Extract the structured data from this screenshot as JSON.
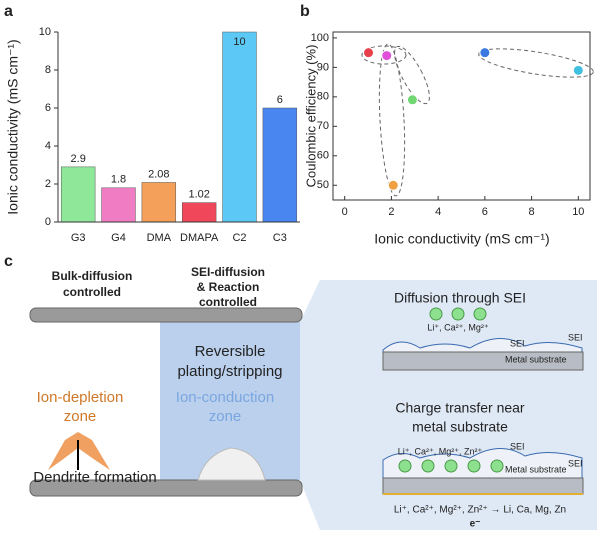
{
  "chart_data": [
    {
      "type": "bar",
      "panel": "a",
      "ylabel": "Ionic conductivity (mS cm⁻¹)",
      "categories": [
        "G3",
        "G4",
        "DMA",
        "DMAPA",
        "C2",
        "C3"
      ],
      "values": [
        2.9,
        1.8,
        2.08,
        1.02,
        10,
        6
      ],
      "colors": [
        "#8fe89a",
        "#f07cc4",
        "#f5a05a",
        "#f0485a",
        "#5cc8f5",
        "#4a86f0"
      ],
      "ylim": [
        0,
        10
      ],
      "yticks": [
        0,
        2,
        4,
        6,
        8,
        10
      ]
    },
    {
      "type": "scatter",
      "panel": "b",
      "xlabel": "Ionic conductivity (mS cm⁻¹)",
      "ylabel": "Coulombic efficiency (%)",
      "x": [
        1.02,
        1.8,
        2.9,
        2.08,
        6,
        10
      ],
      "values": [
        95,
        94,
        79,
        50,
        95,
        89
      ],
      "colors": [
        "#e8404a",
        "#e050d8",
        "#70d870",
        "#f0a040",
        "#3a7ae0",
        "#40c0e0"
      ],
      "xlim": [
        -0.5,
        10.5
      ],
      "xticks": [
        0,
        2,
        4,
        6,
        8,
        10
      ],
      "ylim": [
        45,
        102
      ],
      "yticks": [
        50,
        60,
        70,
        80,
        90,
        100
      ]
    }
  ],
  "diagram": {
    "panel": "c",
    "left_titles": [
      "Bulk-diffusion",
      "controlled"
    ],
    "mid_titles": [
      "SEI-diffusion",
      "& Reaction",
      "controlled"
    ],
    "reversible": [
      "Reversible",
      "plating/stripping"
    ],
    "depletion": [
      "Ion-depletion",
      "zone"
    ],
    "conduction": [
      "Ion-conduction",
      "zone"
    ],
    "dendrite": "Dendrite formation",
    "top_title": "Diffusion through SEI",
    "top_ions": "Li⁺, Ca²⁺, Mg²⁺",
    "top_sei": "SEI",
    "top_sei2": "SEI",
    "top_metal": "Metal substrate",
    "bottom_title": [
      "Charge transfer near",
      "metal substrate"
    ],
    "bottom_ions": "Li⁺, Ca²⁺, Mg²⁺, Zn²⁺",
    "bottom_sei": "SEI",
    "bottom_sei2": "SEI",
    "bottom_metal": "Metal substrate",
    "reaction": "Li⁺, Ca²⁺, Mg²⁺, Zn²⁺ → Li, Ca, Mg, Zn",
    "electron": "e⁻"
  }
}
